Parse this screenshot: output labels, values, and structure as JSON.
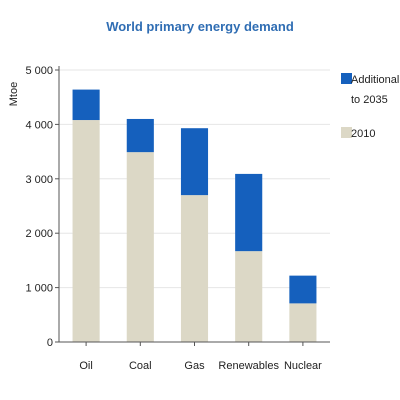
{
  "chart_data": {
    "type": "bar",
    "title": "World primary energy demand",
    "ylabel": "Mtoe",
    "xlabel": "",
    "categories": [
      "Oil",
      "Coal",
      "Gas",
      "Renewables",
      "Nuclear"
    ],
    "series": [
      {
        "name": "2010",
        "values": [
          4080,
          3490,
          2700,
          1670,
          710
        ],
        "color": "#dcd8c6"
      },
      {
        "name": "Additional to 2035",
        "values": [
          560,
          610,
          1230,
          1420,
          510
        ],
        "color": "#1560bd"
      }
    ],
    "stacked": true,
    "ylim": [
      0,
      5000
    ],
    "yticks": [
      0,
      1000,
      2000,
      3000,
      4000,
      5000
    ],
    "ytick_labels": [
      "0",
      "1 000",
      "2 000",
      "3 000",
      "4 000",
      "5 000"
    ],
    "grid": true,
    "legend_position": "right"
  },
  "legend": {
    "additional_line1": "Additional",
    "additional_line2": "to 2035",
    "base": "2010"
  }
}
